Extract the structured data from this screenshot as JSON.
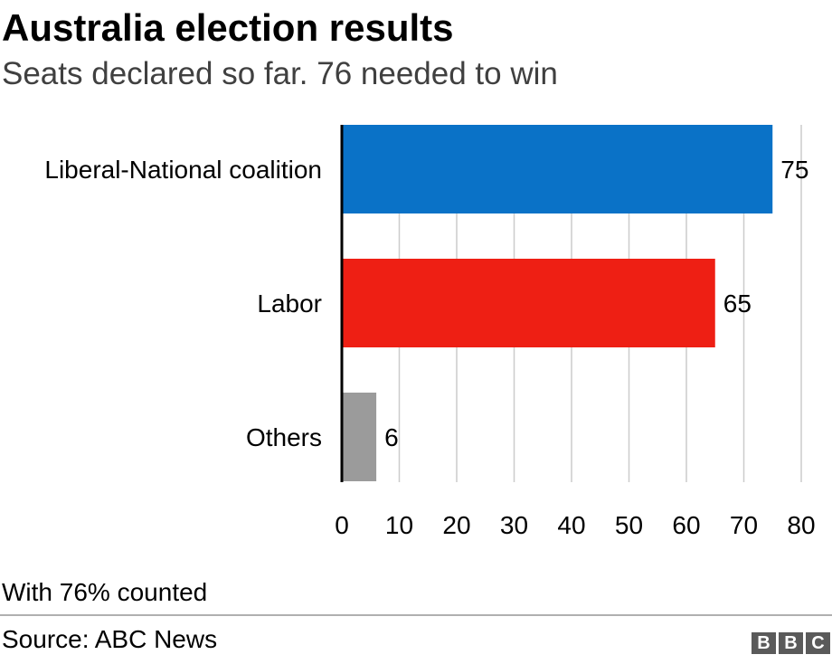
{
  "title": "Australia election results",
  "subtitle": "Seats declared so far. 76 needed to win",
  "note": "With 76% counted",
  "source": "Source: ABC News",
  "logo": [
    "B",
    "B",
    "C"
  ],
  "chart_data": {
    "type": "bar",
    "orientation": "horizontal",
    "title": "Australia election results",
    "subtitle": "Seats declared so far. 76 needed to win",
    "categories": [
      "Liberal-National coalition",
      "Labor",
      "Others"
    ],
    "values": [
      75,
      65,
      6
    ],
    "colors": [
      "#0a72c7",
      "#ee1f14",
      "#9b9b9b"
    ],
    "xlim": [
      0,
      80
    ],
    "ticks": [
      0,
      10,
      20,
      30,
      40,
      50,
      60,
      70,
      80
    ],
    "grid": true,
    "legend": "none"
  }
}
